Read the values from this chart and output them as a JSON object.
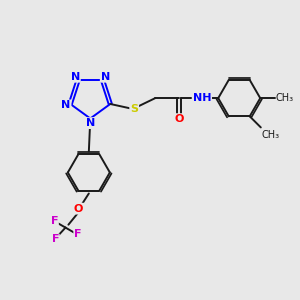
{
  "background_color": "#e8e8e8",
  "bond_color": "#1a1a1a",
  "N_color": "#0000ff",
  "S_color": "#cccc00",
  "O_color": "#ff0000",
  "NH_color": "#0000ff",
  "F_color": "#cc00cc",
  "figsize": [
    3.0,
    3.0
  ],
  "dpi": 100,
  "xlim": [
    0,
    10
  ],
  "ylim": [
    0,
    10
  ]
}
